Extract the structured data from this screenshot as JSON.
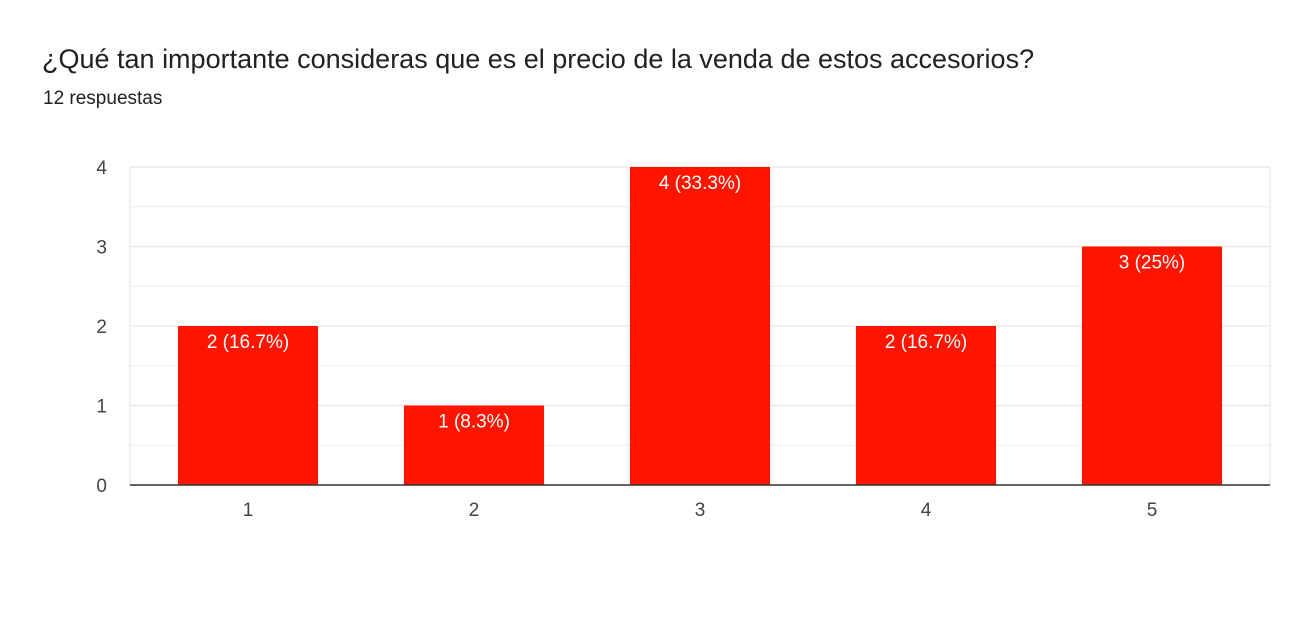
{
  "header": {
    "question": "¿Qué tan importante consideras que es el precio de la venda de estos accesorios?",
    "responses": "12 respuestas"
  },
  "colors": {
    "bar": "#ff1400",
    "grid": "#e6e6e6",
    "axis": "#333333"
  },
  "chart_data": {
    "type": "bar",
    "title": "¿Qué tan importante consideras que es el precio de la venda de estos accesorios?",
    "subtitle": "12 respuestas",
    "categories": [
      "1",
      "2",
      "3",
      "4",
      "5"
    ],
    "values": [
      2,
      1,
      4,
      2,
      3
    ],
    "data_labels": [
      "2 (16.7%)",
      "1 (8.3%)",
      "4 (33.3%)",
      "2 (16.7%)",
      "3 (25%)"
    ],
    "yticks": [
      "0",
      "1",
      "2",
      "3",
      "4"
    ],
    "ylim": [
      0,
      4
    ],
    "grid": true,
    "xlabel": "",
    "ylabel": ""
  }
}
